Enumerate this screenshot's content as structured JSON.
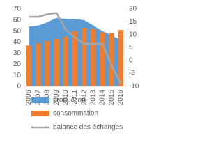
{
  "chart_data": {
    "type": "combo",
    "categories": [
      "2006",
      "2007",
      "2008",
      "2009",
      "2010",
      "2011",
      "2012",
      "2013",
      "2014",
      "2015",
      "2016"
    ],
    "series": [
      {
        "name": "production",
        "type": "area",
        "color": "#5b9bd5",
        "values": [
          54,
          55,
          58,
          62,
          61,
          61,
          60,
          55,
          50,
          46,
          42
        ]
      },
      {
        "name": "consommation",
        "type": "bar",
        "color": "#ed7d31",
        "values": [
          37,
          39,
          41,
          43,
          45,
          50,
          53,
          52,
          49,
          48,
          51
        ]
      },
      {
        "name": "balance des échanges",
        "type": "line",
        "axis": "y2",
        "color": "#a5a5a5",
        "values": [
          17,
          17,
          18,
          18.5,
          12,
          9,
          6.5,
          6.5,
          6.5,
          -2,
          -9
        ]
      }
    ],
    "ylim": [
      0,
      70
    ],
    "yticks": [
      0,
      10,
      20,
      30,
      40,
      50,
      60,
      70
    ],
    "y2lim": [
      -10,
      20
    ],
    "y2ticks": [
      -10,
      -5,
      0,
      5,
      10,
      15,
      20
    ]
  }
}
